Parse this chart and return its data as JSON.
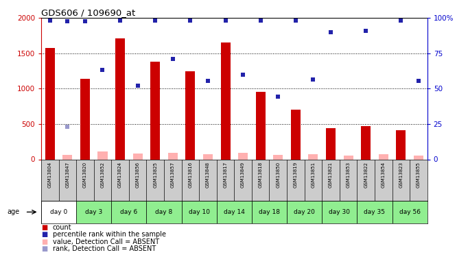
{
  "title": "GDS606 / 109690_at",
  "samples": [
    "GSM13804",
    "GSM13847",
    "GSM13820",
    "GSM13852",
    "GSM13824",
    "GSM13856",
    "GSM13825",
    "GSM13857",
    "GSM13816",
    "GSM13848",
    "GSM13817",
    "GSM13849",
    "GSM13818",
    "GSM13850",
    "GSM13819",
    "GSM13851",
    "GSM13821",
    "GSM13853",
    "GSM13822",
    "GSM13854",
    "GSM13823",
    "GSM13855"
  ],
  "day_spans": [
    {
      "label": "day 0",
      "start": 0,
      "end": 2,
      "color": "#ffffff"
    },
    {
      "label": "day 3",
      "start": 2,
      "end": 4,
      "color": "#90ee90"
    },
    {
      "label": "day 6",
      "start": 4,
      "end": 6,
      "color": "#90ee90"
    },
    {
      "label": "day 8",
      "start": 6,
      "end": 8,
      "color": "#90ee90"
    },
    {
      "label": "day 10",
      "start": 8,
      "end": 10,
      "color": "#90ee90"
    },
    {
      "label": "day 14",
      "start": 10,
      "end": 12,
      "color": "#90ee90"
    },
    {
      "label": "day 18",
      "start": 12,
      "end": 14,
      "color": "#90ee90"
    },
    {
      "label": "day 20",
      "start": 14,
      "end": 16,
      "color": "#90ee90"
    },
    {
      "label": "day 30",
      "start": 16,
      "end": 18,
      "color": "#90ee90"
    },
    {
      "label": "day 35",
      "start": 18,
      "end": 20,
      "color": "#90ee90"
    },
    {
      "label": "day 56",
      "start": 20,
      "end": 22,
      "color": "#90ee90"
    }
  ],
  "counts": [
    1580,
    null,
    1140,
    null,
    1710,
    null,
    1380,
    null,
    1250,
    null,
    1650,
    null,
    960,
    null,
    700,
    null,
    440,
    null,
    470,
    null,
    410,
    null
  ],
  "absent_values": [
    null,
    60,
    null,
    115,
    null,
    80,
    null,
    95,
    null,
    75,
    null,
    90,
    null,
    60,
    null,
    75,
    null,
    55,
    null,
    70,
    null,
    55
  ],
  "percentile_ranks_scaled": [
    1960,
    1955,
    1958,
    1270,
    1962,
    1040,
    1960,
    1420,
    1960,
    1110,
    1960,
    1200,
    1960,
    890,
    1960,
    1130,
    1800,
    null,
    1820,
    null,
    1960,
    1110
  ],
  "absent_ranks_scaled": [
    null,
    460,
    null,
    null,
    null,
    null,
    null,
    null,
    null,
    null,
    null,
    null,
    null,
    null,
    null,
    null,
    null,
    null,
    null,
    null,
    null,
    null
  ],
  "ymax": 2000,
  "yright_max": 100,
  "yticks_left": [
    0,
    500,
    1000,
    1500,
    2000
  ],
  "yticks_right": [
    0,
    25,
    50,
    75,
    100
  ],
  "left_color": "#cc0000",
  "right_color": "#0000cc",
  "bar_color": "#cc0000",
  "absent_bar_color": "#ffb0b0",
  "blue_dot_color": "#2222aa",
  "light_blue_dot_color": "#9999cc",
  "bg_color": "#ffffff",
  "label_bg_color": "#cccccc",
  "legend_items": [
    {
      "color": "#cc0000",
      "label": "count"
    },
    {
      "color": "#2222aa",
      "label": "percentile rank within the sample"
    },
    {
      "color": "#ffb0b0",
      "label": "value, Detection Call = ABSENT"
    },
    {
      "color": "#9999cc",
      "label": "rank, Detection Call = ABSENT"
    }
  ]
}
